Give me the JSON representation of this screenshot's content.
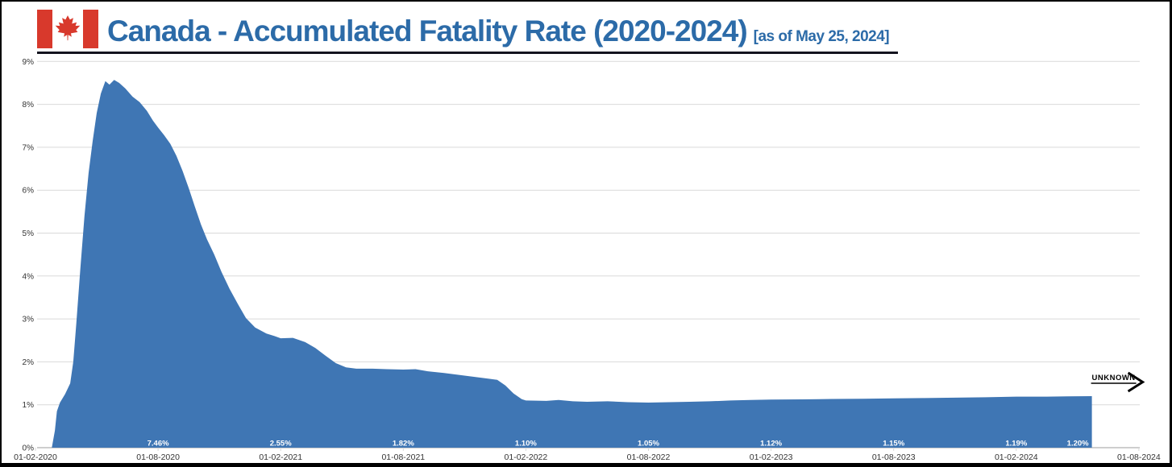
{
  "header": {
    "title": "Canada - Accumulated Fatality Rate (2020-2024)",
    "subtitle": "[as of May 25, 2024]",
    "title_color": "#2c6ba8",
    "underline_color": "#14141f",
    "flag": {
      "name": "canada-flag",
      "red": "#d8392c",
      "white": "#ffffff"
    }
  },
  "chart_data": {
    "type": "area",
    "title": "Canada - Accumulated Fatality Rate (2020-2024)",
    "subtitle": "[as of May 25, 2024]",
    "x_axis": {
      "tick_labels": [
        "01-02-2020",
        "01-08-2020",
        "01-02-2021",
        "01-08-2021",
        "01-02-2022",
        "01-08-2022",
        "01-02-2023",
        "01-08-2023",
        "01-02-2024",
        "01-08-2024"
      ],
      "months_per_tick": 6
    },
    "y_axis": {
      "tick_labels": [
        "0%",
        "1%",
        "2%",
        "3%",
        "4%",
        "5%",
        "6%",
        "7%",
        "8%",
        "9%"
      ],
      "min": 0,
      "max": 9,
      "unit": "%"
    },
    "grid": true,
    "legend": false,
    "colors": {
      "area_fill": "#3f76b4",
      "gridline": "#d9d9d9",
      "baseline": "#9e9e9e",
      "tick_text": "#333333",
      "value_label_text": "#ffffff",
      "annotation_text": "#000000"
    },
    "series": [
      {
        "name": "Accumulated fatality rate (%)",
        "points_months_pct": [
          [
            0.8,
            0
          ],
          [
            0.95,
            0.4
          ],
          [
            1.05,
            0.85
          ],
          [
            1.2,
            1.05
          ],
          [
            1.45,
            1.25
          ],
          [
            1.7,
            1.5
          ],
          [
            1.85,
            2.0
          ],
          [
            2.0,
            2.9
          ],
          [
            2.2,
            4.2
          ],
          [
            2.4,
            5.4
          ],
          [
            2.6,
            6.4
          ],
          [
            2.8,
            7.15
          ],
          [
            3.0,
            7.8
          ],
          [
            3.2,
            8.25
          ],
          [
            3.42,
            8.54
          ],
          [
            3.62,
            8.46
          ],
          [
            3.85,
            8.57
          ],
          [
            4.1,
            8.5
          ],
          [
            4.4,
            8.37
          ],
          [
            4.75,
            8.18
          ],
          [
            5.1,
            8.05
          ],
          [
            5.45,
            7.85
          ],
          [
            5.75,
            7.62
          ],
          [
            6.0,
            7.46
          ],
          [
            6.3,
            7.28
          ],
          [
            6.6,
            7.08
          ],
          [
            6.9,
            6.8
          ],
          [
            7.2,
            6.45
          ],
          [
            7.5,
            6.05
          ],
          [
            7.8,
            5.62
          ],
          [
            8.1,
            5.2
          ],
          [
            8.4,
            4.85
          ],
          [
            8.75,
            4.5
          ],
          [
            9.1,
            4.1
          ],
          [
            9.5,
            3.7
          ],
          [
            9.9,
            3.35
          ],
          [
            10.3,
            3.02
          ],
          [
            10.75,
            2.8
          ],
          [
            11.3,
            2.66
          ],
          [
            11.7,
            2.6
          ],
          [
            12.0,
            2.55
          ],
          [
            12.6,
            2.56
          ],
          [
            13.2,
            2.46
          ],
          [
            13.7,
            2.32
          ],
          [
            14.2,
            2.14
          ],
          [
            14.7,
            1.97
          ],
          [
            15.2,
            1.87
          ],
          [
            15.7,
            1.84
          ],
          [
            16.5,
            1.84
          ],
          [
            17.2,
            1.83
          ],
          [
            18.0,
            1.82
          ],
          [
            18.6,
            1.83
          ],
          [
            19.2,
            1.78
          ],
          [
            20.0,
            1.74
          ],
          [
            21.0,
            1.68
          ],
          [
            22.0,
            1.62
          ],
          [
            22.6,
            1.58
          ],
          [
            23.0,
            1.45
          ],
          [
            23.4,
            1.26
          ],
          [
            23.8,
            1.13
          ],
          [
            24.0,
            1.1
          ],
          [
            25.0,
            1.09
          ],
          [
            25.6,
            1.11
          ],
          [
            26.3,
            1.08
          ],
          [
            27.0,
            1.07
          ],
          [
            28.0,
            1.08
          ],
          [
            29.0,
            1.06
          ],
          [
            30.0,
            1.05
          ],
          [
            31.0,
            1.06
          ],
          [
            32.0,
            1.07
          ],
          [
            33.0,
            1.08
          ],
          [
            34.0,
            1.1
          ],
          [
            35.0,
            1.11
          ],
          [
            36.0,
            1.12
          ],
          [
            37.5,
            1.125
          ],
          [
            39.0,
            1.135
          ],
          [
            40.5,
            1.14
          ],
          [
            42.0,
            1.15
          ],
          [
            43.5,
            1.155
          ],
          [
            45.0,
            1.165
          ],
          [
            46.5,
            1.175
          ],
          [
            48.0,
            1.19
          ],
          [
            49.5,
            1.19
          ],
          [
            50.5,
            1.195
          ],
          [
            51.7,
            1.2
          ]
        ]
      }
    ],
    "value_labels": [
      {
        "month": 6,
        "text": "7.46%"
      },
      {
        "month": 12,
        "text": "2.55%"
      },
      {
        "month": 18,
        "text": "1.82%"
      },
      {
        "month": 24,
        "text": "1.10%"
      },
      {
        "month": 30,
        "text": "1.05%"
      },
      {
        "month": 36,
        "text": "1.12%"
      },
      {
        "month": 42,
        "text": "1.15%"
      },
      {
        "month": 48,
        "text": "1.19%"
      },
      {
        "month": 51.7,
        "text": "1.20%",
        "anchor": "end"
      }
    ],
    "annotation": {
      "label": "UNKNOWN",
      "style": "underline-arrow-right"
    }
  }
}
